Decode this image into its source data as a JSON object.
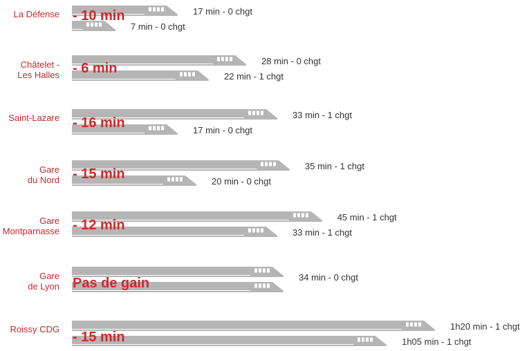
{
  "colors": {
    "train": "#b5b5b5",
    "label": "#c8282d",
    "gain": "#d3262b",
    "text": "#333333"
  },
  "chart_data": {
    "type": "bar",
    "unit": "minutes",
    "stations": [
      {
        "name": "La Défense",
        "gain": "- 10 min",
        "trains": [
          {
            "label": "17 min - 0 chgt",
            "minutes": 17
          },
          {
            "label": "7 min - 0 chgt",
            "minutes": 7
          }
        ]
      },
      {
        "name": "Châtelet -\nLes Halles",
        "gain": "- 6 min",
        "trains": [
          {
            "label": "28 min - 0 chgt",
            "minutes": 28
          },
          {
            "label": "22 min - 1 chgt",
            "minutes": 22
          }
        ]
      },
      {
        "name": "Saint-Lazare",
        "gain": "- 16 min",
        "trains": [
          {
            "label": "33 min - 1 chgt",
            "minutes": 33
          },
          {
            "label": "17 min - 0 chgt",
            "minutes": 17
          }
        ]
      },
      {
        "name": "Gare\ndu Nord",
        "gain": "- 15 min",
        "trains": [
          {
            "label": "35 min - 1 chgt",
            "minutes": 35
          },
          {
            "label": "20 min - 0 chgt",
            "minutes": 20
          }
        ]
      },
      {
        "name": "Gare\nMontparnasse",
        "gain": "- 12 min",
        "trains": [
          {
            "label": "45 min - 1 chgt",
            "minutes": 45
          },
          {
            "label": "33 min - 1 chgt",
            "minutes": 33
          }
        ]
      },
      {
        "name": "Gare\nde Lyon",
        "gain": "Pas de gain",
        "trains": [
          {
            "label": "34 min - 0 chgt",
            "minutes": 34
          },
          {
            "label": "",
            "minutes": 34
          }
        ]
      },
      {
        "name": "Roissy CDG",
        "gain": "- 15 min",
        "trains": [
          {
            "label": "1h20 min - 1 chgt",
            "minutes": 80
          },
          {
            "label": "1h05 min - 1 chgt",
            "minutes": 65
          }
        ]
      }
    ]
  }
}
